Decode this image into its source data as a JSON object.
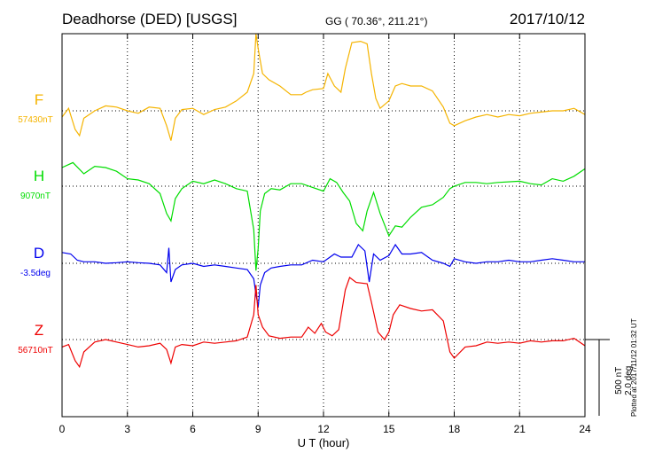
{
  "header": {
    "title": "Deadhorse (DED)  [USGS]",
    "coords": "GG ( 70.36°, 211.21°)",
    "date": "2017/10/12"
  },
  "side_note": "Plotted at 2017/11/12 01:32 UT",
  "scale_label": [
    "500 nT",
    "2.0 deg"
  ],
  "chart_data": {
    "type": "line",
    "title": "Deadhorse (DED)  [USGS]",
    "xlabel": "U T (hour)",
    "xlim": [
      0,
      24
    ],
    "xticks": [
      0,
      3,
      6,
      9,
      12,
      15,
      18,
      21,
      24
    ],
    "grid": true,
    "scale": {
      "nT": 500,
      "deg": 2.0
    },
    "series": [
      {
        "name": "F",
        "baseline_label": "57430nT",
        "color": "#f5b400",
        "unit": "nT",
        "points": [
          [
            0,
            -50
          ],
          [
            0.3,
            20
          ],
          [
            0.6,
            -150
          ],
          [
            0.8,
            -200
          ],
          [
            1.0,
            -60
          ],
          [
            1.5,
            0
          ],
          [
            2,
            40
          ],
          [
            2.5,
            30
          ],
          [
            3,
            0
          ],
          [
            3.5,
            -20
          ],
          [
            4,
            30
          ],
          [
            4.5,
            20
          ],
          [
            4.8,
            -120
          ],
          [
            5.0,
            -240
          ],
          [
            5.2,
            -60
          ],
          [
            5.5,
            10
          ],
          [
            6,
            20
          ],
          [
            6.5,
            -30
          ],
          [
            7,
            10
          ],
          [
            7.5,
            30
          ],
          [
            8,
            80
          ],
          [
            8.5,
            150
          ],
          [
            8.8,
            300
          ],
          [
            8.9,
            620
          ],
          [
            9.0,
            500
          ],
          [
            9.2,
            300
          ],
          [
            9.5,
            250
          ],
          [
            10,
            200
          ],
          [
            10.5,
            130
          ],
          [
            11,
            130
          ],
          [
            11.2,
            150
          ],
          [
            11.5,
            170
          ],
          [
            12,
            180
          ],
          [
            12.2,
            300
          ],
          [
            12.5,
            200
          ],
          [
            12.8,
            150
          ],
          [
            13,
            340
          ],
          [
            13.3,
            550
          ],
          [
            13.7,
            560
          ],
          [
            14,
            540
          ],
          [
            14.2,
            300
          ],
          [
            14.4,
            100
          ],
          [
            14.6,
            20
          ],
          [
            15,
            80
          ],
          [
            15.3,
            200
          ],
          [
            15.6,
            220
          ],
          [
            16,
            200
          ],
          [
            16.5,
            200
          ],
          [
            17,
            160
          ],
          [
            17.5,
            30
          ],
          [
            17.8,
            -100
          ],
          [
            18,
            -120
          ],
          [
            18.5,
            -80
          ],
          [
            19,
            -50
          ],
          [
            19.5,
            -30
          ],
          [
            20,
            -50
          ],
          [
            20.5,
            -30
          ],
          [
            21,
            -40
          ],
          [
            21.5,
            -20
          ],
          [
            22,
            -10
          ],
          [
            22.5,
            0
          ],
          [
            23,
            0
          ],
          [
            23.5,
            20
          ],
          [
            24,
            -30
          ]
        ]
      },
      {
        "name": "H",
        "baseline_label": "9070nT",
        "color": "#00dd00",
        "unit": "nT",
        "points": [
          [
            0,
            150
          ],
          [
            0.5,
            190
          ],
          [
            1,
            100
          ],
          [
            1.5,
            160
          ],
          [
            2,
            150
          ],
          [
            2.5,
            120
          ],
          [
            3,
            60
          ],
          [
            3.5,
            50
          ],
          [
            4,
            20
          ],
          [
            4.5,
            -60
          ],
          [
            4.8,
            -220
          ],
          [
            5.0,
            -280
          ],
          [
            5.2,
            -100
          ],
          [
            5.5,
            -20
          ],
          [
            6,
            40
          ],
          [
            6.5,
            20
          ],
          [
            7,
            50
          ],
          [
            7.5,
            20
          ],
          [
            8,
            -20
          ],
          [
            8.5,
            -40
          ],
          [
            8.8,
            -350
          ],
          [
            8.9,
            -680
          ],
          [
            9.0,
            -500
          ],
          [
            9.1,
            -200
          ],
          [
            9.3,
            -60
          ],
          [
            9.6,
            -20
          ],
          [
            10,
            -30
          ],
          [
            10.5,
            20
          ],
          [
            11,
            20
          ],
          [
            11.5,
            -10
          ],
          [
            12,
            -40
          ],
          [
            12.3,
            60
          ],
          [
            12.6,
            30
          ],
          [
            12.9,
            -50
          ],
          [
            13.2,
            -120
          ],
          [
            13.5,
            -300
          ],
          [
            13.8,
            -360
          ],
          [
            14.0,
            -200
          ],
          [
            14.3,
            -50
          ],
          [
            14.6,
            -220
          ],
          [
            15,
            -400
          ],
          [
            15.3,
            -320
          ],
          [
            15.6,
            -330
          ],
          [
            16,
            -250
          ],
          [
            16.5,
            -170
          ],
          [
            17,
            -150
          ],
          [
            17.5,
            -90
          ],
          [
            17.8,
            -20
          ],
          [
            18,
            0
          ],
          [
            18.5,
            30
          ],
          [
            19,
            30
          ],
          [
            19.5,
            20
          ],
          [
            20,
            30
          ],
          [
            21,
            40
          ],
          [
            21.5,
            20
          ],
          [
            22,
            10
          ],
          [
            22.5,
            60
          ],
          [
            23,
            40
          ],
          [
            23.5,
            80
          ],
          [
            24,
            140
          ]
        ]
      },
      {
        "name": "D",
        "baseline_label": "-3.5deg",
        "color": "#0000ee",
        "unit": "deg",
        "points": [
          [
            0,
            0.35
          ],
          [
            0.4,
            0.3
          ],
          [
            0.7,
            0.1
          ],
          [
            1,
            0.05
          ],
          [
            1.5,
            0.05
          ],
          [
            2,
            0.0
          ],
          [
            2.5,
            0.02
          ],
          [
            3,
            0.05
          ],
          [
            3.5,
            0.02
          ],
          [
            4,
            0.0
          ],
          [
            4.5,
            -0.05
          ],
          [
            4.8,
            -0.3
          ],
          [
            4.9,
            0.5
          ],
          [
            5.0,
            -0.6
          ],
          [
            5.2,
            -0.2
          ],
          [
            5.5,
            -0.05
          ],
          [
            6,
            0.0
          ],
          [
            6.5,
            -0.1
          ],
          [
            7,
            -0.05
          ],
          [
            7.5,
            -0.1
          ],
          [
            8,
            -0.15
          ],
          [
            8.5,
            -0.2
          ],
          [
            8.8,
            -0.5
          ],
          [
            8.9,
            -1.0
          ],
          [
            9.0,
            -1.4
          ],
          [
            9.1,
            -0.7
          ],
          [
            9.3,
            -0.3
          ],
          [
            9.6,
            -0.15
          ],
          [
            10,
            -0.1
          ],
          [
            10.5,
            -0.05
          ],
          [
            11,
            -0.05
          ],
          [
            11.5,
            0.1
          ],
          [
            12,
            0.05
          ],
          [
            12.5,
            0.3
          ],
          [
            12.8,
            0.2
          ],
          [
            13,
            0.2
          ],
          [
            13.3,
            0.2
          ],
          [
            13.6,
            0.6
          ],
          [
            13.9,
            0.4
          ],
          [
            14.1,
            -0.6
          ],
          [
            14.3,
            0.3
          ],
          [
            14.6,
            0.1
          ],
          [
            15,
            0.25
          ],
          [
            15.3,
            0.6
          ],
          [
            15.6,
            0.3
          ],
          [
            16,
            0.3
          ],
          [
            16.5,
            0.35
          ],
          [
            17,
            0.1
          ],
          [
            17.5,
            0.0
          ],
          [
            17.8,
            -0.1
          ],
          [
            18,
            0.15
          ],
          [
            18.5,
            0.05
          ],
          [
            19,
            0.0
          ],
          [
            19.5,
            0.05
          ],
          [
            20,
            0.05
          ],
          [
            20.5,
            0.1
          ],
          [
            21,
            0.05
          ],
          [
            21.5,
            0.05
          ],
          [
            22,
            0.1
          ],
          [
            22.5,
            0.15
          ],
          [
            23,
            0.1
          ],
          [
            23.5,
            0.05
          ],
          [
            24,
            0.05
          ]
        ]
      },
      {
        "name": "Z",
        "baseline_label": "56710nT",
        "color": "#ee0000",
        "unit": "nT",
        "points": [
          [
            0,
            -60
          ],
          [
            0.3,
            -40
          ],
          [
            0.6,
            -170
          ],
          [
            0.8,
            -220
          ],
          [
            1.0,
            -100
          ],
          [
            1.5,
            -20
          ],
          [
            2,
            0
          ],
          [
            2.5,
            -20
          ],
          [
            3,
            -40
          ],
          [
            3.5,
            -60
          ],
          [
            4,
            -50
          ],
          [
            4.5,
            -30
          ],
          [
            4.8,
            -80
          ],
          [
            5.0,
            -190
          ],
          [
            5.2,
            -60
          ],
          [
            5.5,
            -40
          ],
          [
            6,
            -50
          ],
          [
            6.5,
            -20
          ],
          [
            7,
            -30
          ],
          [
            7.5,
            -20
          ],
          [
            8,
            -10
          ],
          [
            8.5,
            20
          ],
          [
            8.8,
            200
          ],
          [
            8.9,
            440
          ],
          [
            9.0,
            200
          ],
          [
            9.2,
            100
          ],
          [
            9.5,
            30
          ],
          [
            10,
            10
          ],
          [
            10.5,
            20
          ],
          [
            11,
            20
          ],
          [
            11.3,
            100
          ],
          [
            11.6,
            50
          ],
          [
            11.9,
            130
          ],
          [
            12.1,
            60
          ],
          [
            12.4,
            30
          ],
          [
            12.7,
            80
          ],
          [
            13,
            400
          ],
          [
            13.2,
            500
          ],
          [
            13.5,
            460
          ],
          [
            14,
            450
          ],
          [
            14.2,
            300
          ],
          [
            14.5,
            60
          ],
          [
            14.8,
            0
          ],
          [
            15.0,
            60
          ],
          [
            15.2,
            200
          ],
          [
            15.5,
            280
          ],
          [
            16,
            250
          ],
          [
            16.5,
            230
          ],
          [
            17,
            240
          ],
          [
            17.5,
            150
          ],
          [
            17.8,
            -100
          ],
          [
            18,
            -150
          ],
          [
            18.5,
            -60
          ],
          [
            19,
            -50
          ],
          [
            19.5,
            -20
          ],
          [
            20,
            -30
          ],
          [
            20.5,
            -20
          ],
          [
            21,
            -30
          ],
          [
            21.5,
            -10
          ],
          [
            22,
            -20
          ],
          [
            22.5,
            -10
          ],
          [
            23,
            -10
          ],
          [
            23.5,
            10
          ],
          [
            24,
            -50
          ]
        ]
      }
    ]
  }
}
